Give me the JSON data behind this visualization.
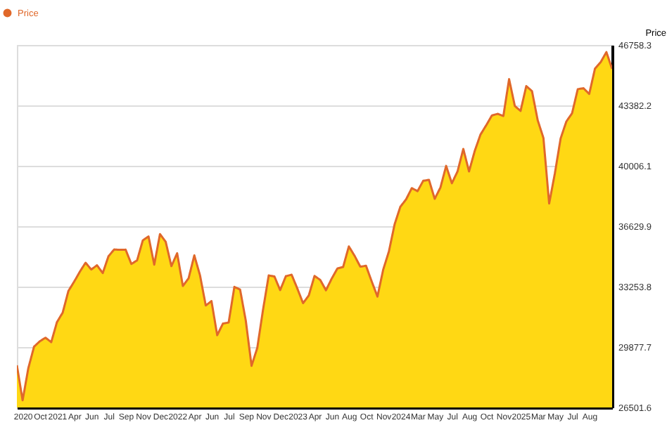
{
  "chart_data": {
    "type": "area",
    "ylabel": "Price",
    "legend": "top left",
    "grid": "y",
    "categories": [
      null,
      "2020",
      null,
      null,
      "Oct",
      null,
      null,
      "2021",
      null,
      null,
      "Apr",
      null,
      null,
      "Jun",
      null,
      null,
      "Jul",
      null,
      null,
      "Sep",
      null,
      null,
      "Nov",
      null,
      null,
      "Dec",
      null,
      null,
      "2022",
      null,
      null,
      "Apr",
      null,
      null,
      "Jun",
      null,
      null,
      "Jul",
      null,
      null,
      "Sep",
      null,
      null,
      "Nov",
      null,
      null,
      "Dec",
      null,
      null,
      "2023",
      null,
      null,
      "Apr",
      null,
      null,
      "Jun",
      null,
      null,
      "Aug",
      null,
      null,
      "Oct",
      null,
      null,
      "Nov",
      null,
      null,
      "2024",
      null,
      null,
      "Mar",
      null,
      null,
      "May",
      null,
      null,
      "Jul",
      null,
      null,
      "Aug",
      null,
      null,
      "Oct",
      null,
      null,
      "Nov",
      null,
      null,
      "2025",
      null,
      null,
      "Mar",
      null,
      null,
      "May",
      null,
      null,
      "Jul",
      null,
      null,
      "Aug",
      null,
      null,
      null,
      null
    ],
    "series": [
      {
        "name": "Price",
        "color": "#e0682a",
        "values": [
          28860,
          26900,
          28700,
          29900,
          30200,
          30400,
          30150,
          31270,
          31800,
          33010,
          33530,
          34090,
          34590,
          34210,
          34450,
          34010,
          34950,
          35330,
          35310,
          35320,
          34520,
          34720,
          35840,
          36060,
          34480,
          36190,
          35760,
          34400,
          35120,
          33290,
          33720,
          35000,
          33880,
          32200,
          32450,
          30540,
          31190,
          31250,
          33240,
          33090,
          31340,
          28830,
          29830,
          31950,
          33880,
          33820,
          33060,
          33840,
          33920,
          33150,
          32330,
          32760,
          33850,
          33630,
          33050,
          33700,
          34270,
          34350,
          35500,
          34980,
          34370,
          34420,
          33540,
          32700,
          34200,
          35220,
          36740,
          37720,
          38130,
          38760,
          38590,
          39170,
          39220,
          38160,
          38790,
          40000,
          39030,
          39700,
          40950,
          39690,
          40840,
          41750,
          42270,
          42820,
          42910,
          42790,
          44850,
          43350,
          43070,
          44460,
          44180,
          42550,
          41560,
          37900,
          39590,
          41530,
          42480,
          42940,
          44290,
          44340,
          44020,
          45430,
          45800,
          46360,
          45420
        ]
      }
    ],
    "ylim": [
      26501.6,
      46758.3
    ],
    "yticks": [
      26501.6,
      29877.7,
      33253.8,
      36629.9,
      40006.1,
      43382.2,
      46758.3
    ]
  }
}
